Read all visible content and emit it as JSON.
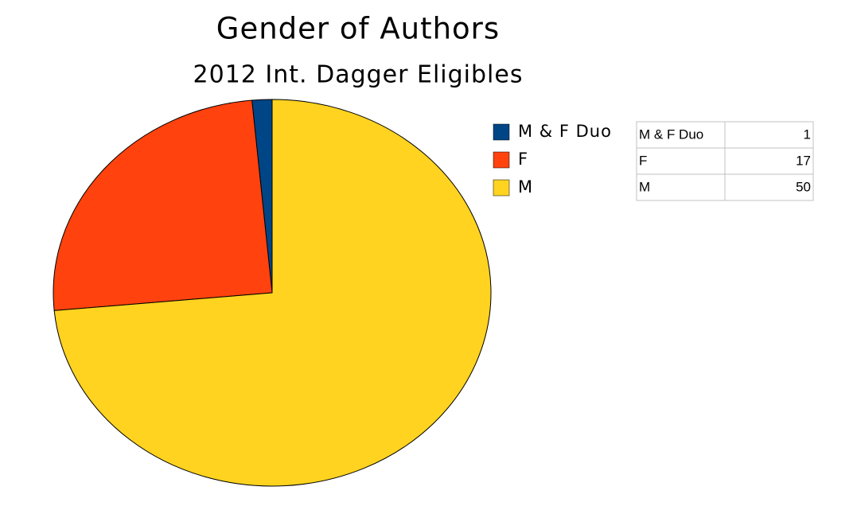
{
  "chart_data": {
    "type": "pie",
    "title": "Gender of Authors",
    "subtitle": "2012 Int. Dagger Eligibles",
    "categories": [
      "M & F Duo",
      "F",
      "M"
    ],
    "values": [
      1,
      17,
      50
    ],
    "colors": [
      "#004586",
      "#ff420e",
      "#ffd320"
    ],
    "direction": "counterclockwise",
    "start": "top"
  }
}
